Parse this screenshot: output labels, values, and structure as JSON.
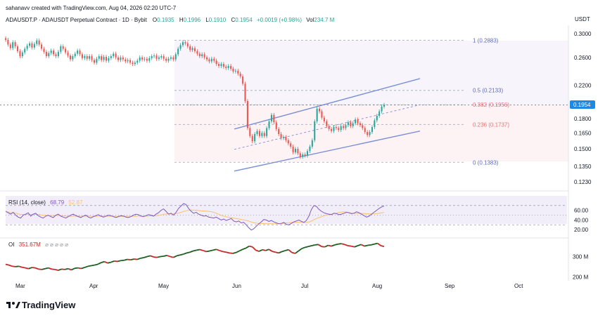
{
  "header": {
    "line1": "sahanavv created with TradingView.com, Aug 04, 2026 02:20 UTC-7",
    "symbol": "ADAUSDT.P · ADAUSDT Perpetual Contract · 1D · Bybit",
    "o_label": "O",
    "o_value": "0.1935",
    "h_label": "H",
    "h_value": "0.1996",
    "l_label": "L",
    "l_value": "0.1910",
    "c_label": "C",
    "c_value": "0.1954",
    "change": "+0.0019 (+0.98%)",
    "vol_label": "Vol",
    "vol_value": "234.7 M"
  },
  "currency": "USDT",
  "last_price": "0.1954",
  "brand": "TradingView",
  "colors": {
    "up": "#26a69a",
    "down": "#ef5350",
    "channel": "#7b8fd6",
    "fib_line": "#b2b5be",
    "rsi_line": "#7e57c2",
    "rsi_ma": "#f7c26b",
    "oi_up": "#1b5e20",
    "oi_down": "#c62828",
    "price_badge": "#1e88e5"
  },
  "chart_data": [
    {
      "type": "candlestick",
      "title": "ADAUSDT.P · ADAUSDT Perpetual Contract · 1D · Bybit",
      "x_labels": [
        "Mar",
        "Apr",
        "May",
        "Jun",
        "Jul",
        "Aug",
        "Sep",
        "Oct"
      ],
      "y_ticks": [
        "0.3000",
        "0.2600",
        "0.2200",
        "0.1800",
        "0.1650",
        "0.1500",
        "0.1350",
        "0.1230"
      ],
      "y_scale": "log",
      "close_series": [
        0.289,
        0.281,
        0.275,
        0.285,
        0.278,
        0.27,
        0.262,
        0.268,
        0.274,
        0.279,
        0.283,
        0.276,
        0.282,
        0.288,
        0.281,
        0.274,
        0.269,
        0.262,
        0.267,
        0.271,
        0.265,
        0.262,
        0.269,
        0.278,
        0.274,
        0.268,
        0.263,
        0.257,
        0.262,
        0.266,
        0.271,
        0.265,
        0.259,
        0.262,
        0.258,
        0.262,
        0.256,
        0.252,
        0.258,
        0.262,
        0.256,
        0.261,
        0.255,
        0.259,
        0.262,
        0.266,
        0.26,
        0.256,
        0.26,
        0.257,
        0.254,
        0.256,
        0.252,
        0.25,
        0.252,
        0.255,
        0.26,
        0.257,
        0.258,
        0.255,
        0.259,
        0.262,
        0.263,
        0.258,
        0.26,
        0.262,
        0.258,
        0.255,
        0.258,
        0.26,
        0.257,
        0.265,
        0.274,
        0.28,
        0.285,
        0.283,
        0.278,
        0.272,
        0.275,
        0.27,
        0.266,
        0.262,
        0.265,
        0.26,
        0.257,
        0.254,
        0.258,
        0.255,
        0.25,
        0.247,
        0.25,
        0.246,
        0.244,
        0.247,
        0.243,
        0.239,
        0.24,
        0.236,
        0.232,
        0.222,
        0.2,
        0.17,
        0.162,
        0.157,
        0.164,
        0.167,
        0.162,
        0.165,
        0.162,
        0.17,
        0.177,
        0.184,
        0.176,
        0.169,
        0.164,
        0.16,
        0.161,
        0.158,
        0.155,
        0.152,
        0.147,
        0.15,
        0.146,
        0.143,
        0.145,
        0.144,
        0.148,
        0.152,
        0.158,
        0.177,
        0.191,
        0.188,
        0.181,
        0.177,
        0.172,
        0.169,
        0.167,
        0.171,
        0.17,
        0.168,
        0.172,
        0.17,
        0.173,
        0.176,
        0.172,
        0.175,
        0.179,
        0.175,
        0.173,
        0.17,
        0.166,
        0.163,
        0.166,
        0.171,
        0.178,
        0.183,
        0.188,
        0.1935,
        0.1954
      ],
      "fib_levels": [
        {
          "label": "1 (0.2883)",
          "value": 0.2883
        },
        {
          "label": "0.5 (0.2133)",
          "value": 0.2133
        },
        {
          "label": "0.382 (0.1956)",
          "value": 0.1956
        },
        {
          "label": "0.236 (0.1737)",
          "value": 0.1737
        },
        {
          "label": "0 (0.1383)",
          "value": 0.1383
        }
      ],
      "channel": "ascending",
      "last_price": 0.1954
    },
    {
      "type": "line",
      "title": "RSI (14, close)",
      "series": [
        {
          "name": "RSI",
          "value_label": "68.79"
        },
        {
          "name": "RSI-based MA",
          "value_label": "52.87"
        }
      ],
      "y_ticks": [
        "60.00",
        "40.00",
        "20.00"
      ],
      "ylim": [
        10,
        90
      ],
      "bands": [
        30,
        70
      ],
      "rsi_values": [
        58,
        55,
        52,
        56,
        50,
        46,
        44,
        50,
        52,
        55,
        48,
        52,
        54,
        49,
        46,
        44,
        48,
        50,
        47,
        45,
        50,
        52,
        48,
        46,
        44,
        47,
        50,
        52,
        49,
        47,
        45,
        48,
        50,
        46,
        44,
        47,
        49,
        51,
        48,
        46,
        48,
        50,
        49,
        47,
        45,
        47,
        49,
        48,
        46,
        45,
        47,
        50,
        52,
        51,
        48,
        47,
        49,
        51,
        50,
        48,
        52,
        55,
        60,
        63,
        58,
        52,
        54,
        50,
        56,
        64,
        69,
        74,
        72,
        64,
        58,
        54,
        56,
        52,
        50,
        48,
        49,
        46,
        45,
        44,
        46,
        43,
        40,
        42,
        39,
        41,
        43,
        38,
        36,
        38,
        34,
        35,
        30,
        24,
        19,
        22,
        27,
        32,
        36,
        41,
        40,
        37,
        39,
        36,
        34,
        32,
        33,
        35,
        31,
        30,
        33,
        36,
        38,
        40,
        37,
        35,
        39,
        48,
        62,
        70,
        68,
        62,
        58,
        55,
        53,
        52,
        51,
        54,
        53,
        51,
        52,
        54,
        56,
        55,
        53,
        54,
        57,
        55,
        52,
        49,
        46,
        48,
        52,
        56,
        60,
        64,
        67,
        69
      ]
    },
    {
      "type": "line",
      "title": "OI",
      "series": [
        {
          "name": "OI",
          "value_label": "351.67M"
        }
      ],
      "y_ticks": [
        "300 M",
        "200 M"
      ],
      "oi_values": [
        262,
        258,
        252,
        250,
        252,
        247,
        244,
        240,
        246,
        244,
        238,
        236,
        240,
        244,
        238,
        236,
        232,
        238,
        236,
        240,
        234,
        242,
        244,
        241,
        246,
        252,
        255,
        258,
        262,
        270,
        275,
        268,
        272,
        278,
        276,
        280,
        282,
        286,
        284,
        288,
        286,
        292,
        295,
        300,
        304,
        298,
        296,
        300,
        302,
        306,
        300,
        296,
        304,
        308,
        312,
        318,
        322,
        328,
        332,
        335,
        330,
        325,
        328,
        332,
        336,
        330,
        325,
        322,
        318,
        316,
        320,
        328,
        336,
        342,
        352,
        348,
        332,
        326,
        334,
        330,
        336,
        326,
        322,
        318,
        325,
        330,
        334,
        320,
        316,
        328,
        340,
        346,
        350,
        354,
        358,
        360,
        350,
        348,
        356,
        352,
        358,
        362,
        364,
        360,
        354,
        352,
        348,
        354,
        360,
        352,
        356,
        358,
        362,
        366,
        354,
        350
      ]
    }
  ]
}
